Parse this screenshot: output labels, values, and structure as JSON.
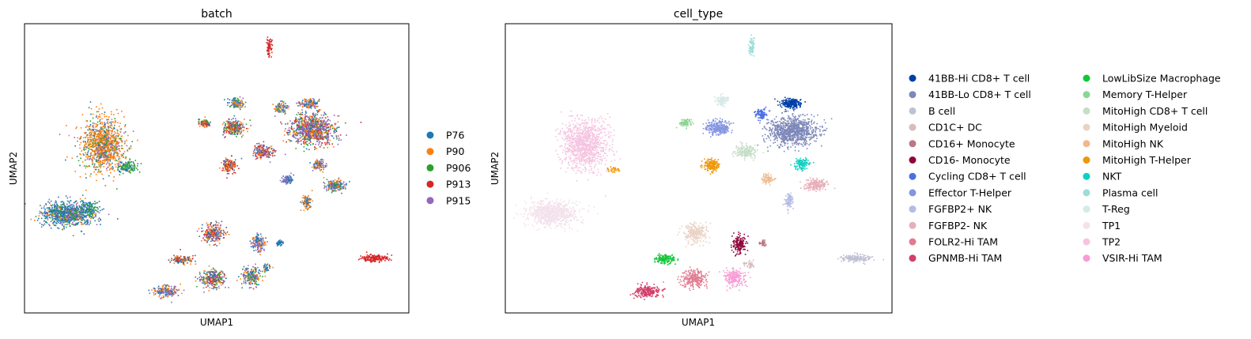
{
  "chart_data": [
    {
      "type": "scatter",
      "title": "batch",
      "xlabel": "UMAP1",
      "ylabel": "UMAP2",
      "grid": false,
      "ticks": false,
      "legend_position": "right",
      "series": [
        {
          "name": "P76",
          "color": "#1f77b4"
        },
        {
          "name": "P90",
          "color": "#ff7f0e"
        },
        {
          "name": "P906",
          "color": "#2ca02c"
        },
        {
          "name": "P913",
          "color": "#d62728"
        },
        {
          "name": "P915",
          "color": "#9467bd"
        }
      ]
    },
    {
      "type": "scatter",
      "title": "cell_type",
      "xlabel": "UMAP1",
      "ylabel": "UMAP2",
      "grid": false,
      "ticks": false,
      "legend_position": "right",
      "series": [
        {
          "name": "41BB-Hi CD8+ T cell",
          "color": "#023fa5"
        },
        {
          "name": "41BB-Lo CD8+ T cell",
          "color": "#7d87b9"
        },
        {
          "name": "B cell",
          "color": "#bec1d4"
        },
        {
          "name": "CD1C+ DC",
          "color": "#d6bcc0"
        },
        {
          "name": "CD16+ Monocyte",
          "color": "#bb7784"
        },
        {
          "name": "CD16- Monocyte",
          "color": "#8e063b"
        },
        {
          "name": "Cycling CD8+ T cell",
          "color": "#4a6fe3"
        },
        {
          "name": "Effector T-Helper",
          "color": "#8595e1"
        },
        {
          "name": "FGFBP2+ NK",
          "color": "#b5bbe3"
        },
        {
          "name": "FGFBP2- NK",
          "color": "#e6afb9"
        },
        {
          "name": "FOLR2-Hi TAM",
          "color": "#e07b91"
        },
        {
          "name": "GPNMB-Hi TAM",
          "color": "#d33f6a"
        },
        {
          "name": "LowLibSize Macrophage",
          "color": "#11c638"
        },
        {
          "name": "Memory T-Helper",
          "color": "#8dd593"
        },
        {
          "name": "MitoHigh CD8+ T cell",
          "color": "#c6dec7"
        },
        {
          "name": "MitoHigh Myeloid",
          "color": "#ead3c6"
        },
        {
          "name": "MitoHigh NK",
          "color": "#f0b98d"
        },
        {
          "name": "MitoHigh T-Helper",
          "color": "#ef9708"
        },
        {
          "name": "NKT",
          "color": "#0fcfc0"
        },
        {
          "name": "Plasma cell",
          "color": "#9cded6"
        },
        {
          "name": "T-Reg",
          "color": "#d5eae7"
        },
        {
          "name": "TP1",
          "color": "#f3e1eb"
        },
        {
          "name": "TP2",
          "color": "#f6c4e1"
        },
        {
          "name": "VSIR-Hi TAM",
          "color": "#f79cd4"
        }
      ]
    }
  ]
}
